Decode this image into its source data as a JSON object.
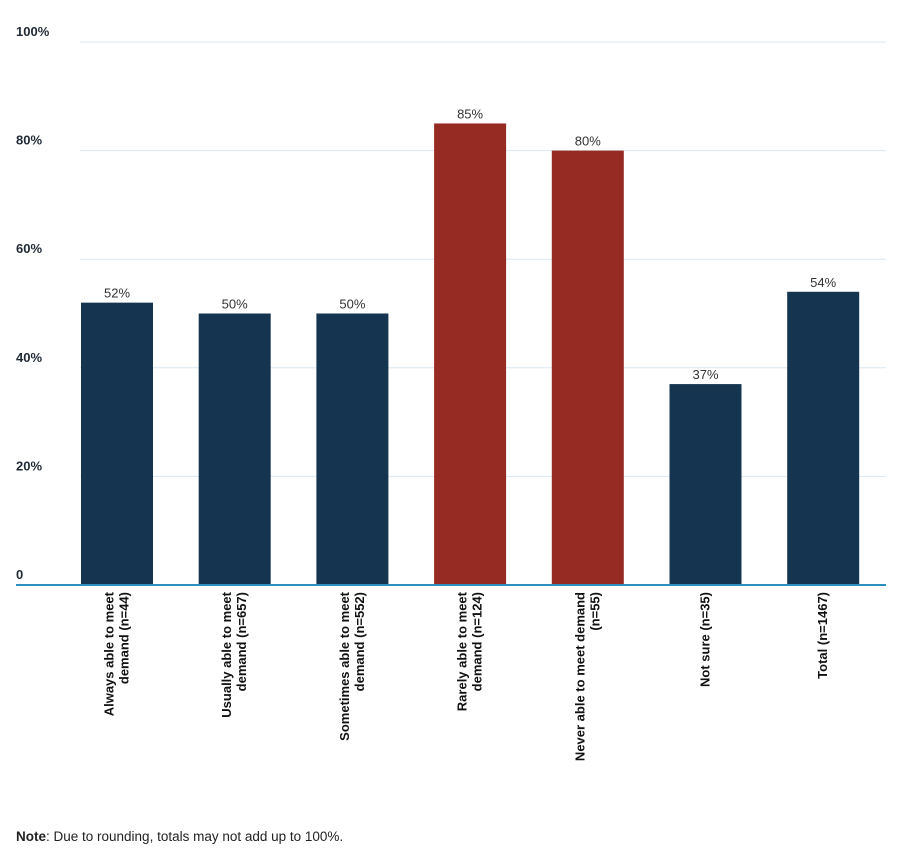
{
  "chart_data": {
    "type": "bar",
    "categories": [
      [
        "Always able to meet",
        "demand (n=44)"
      ],
      [
        "Usually able to meet",
        "demand (n=657)"
      ],
      [
        "Sometimes able to meet",
        "demand (n=552)"
      ],
      [
        "Rarely able to meet",
        "demand (n=124)"
      ],
      [
        "Never able to meet demand",
        "(n=55)"
      ],
      [
        "Not sure (n=35)"
      ],
      [
        "Total (n=1467)"
      ]
    ],
    "values": [
      52,
      50,
      50,
      85,
      80,
      37,
      54
    ],
    "data_labels": [
      "52%",
      "50%",
      "50%",
      "85%",
      "80%",
      "37%",
      "54%"
    ],
    "highlighted": [
      false,
      false,
      false,
      true,
      true,
      false,
      false
    ],
    "colors": {
      "default": "#14344f",
      "highlight": "#962b24",
      "grid": "#d9e8f2",
      "axis": "#2a8fbd"
    },
    "yticks": [
      0,
      20,
      40,
      60,
      80,
      100
    ],
    "ytick_labels": [
      "0",
      "20%",
      "40%",
      "60%",
      "80%",
      "100%"
    ],
    "ylim": [
      0,
      100
    ],
    "grid": true,
    "legend": "none"
  },
  "note": {
    "label": "Note",
    "text": ": Due to rounding, totals may not add up to 100%."
  }
}
